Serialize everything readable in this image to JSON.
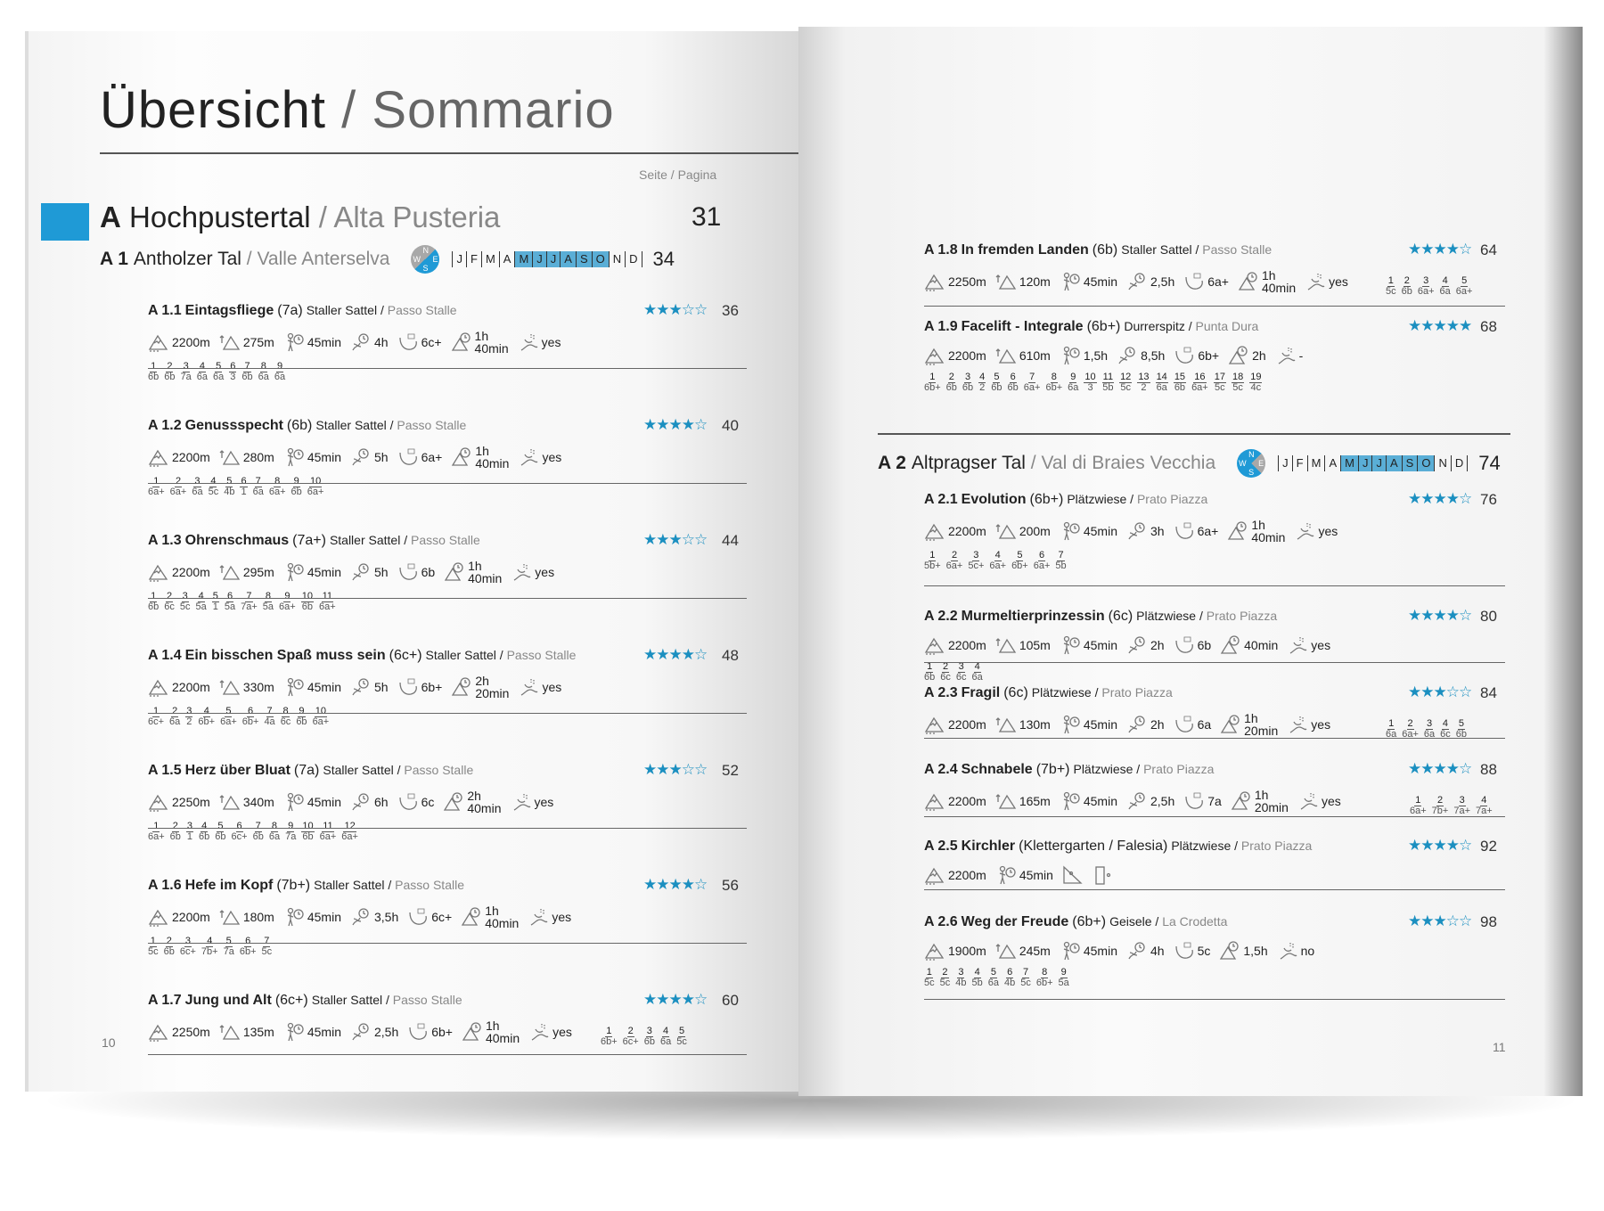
{
  "header": {
    "title_de": "Übersicht",
    "separator": " / ",
    "title_it": "Sommario",
    "page_label": "Seite / Pagina"
  },
  "region": {
    "letter": "A",
    "name_de": "Hochpustertal",
    "separator": " / ",
    "name_it": "Alta Pusteria",
    "page": "31"
  },
  "months": [
    "J",
    "F",
    "M",
    "A",
    "M",
    "J",
    "J",
    "A",
    "S",
    "O",
    "N",
    "D"
  ],
  "valleys": [
    {
      "code": "A 1",
      "name_de": "Antholzer Tal",
      "separator": " / ",
      "name_it": "Valle Anterselva",
      "page": "34",
      "compass": {
        "n": "N",
        "w": "W",
        "e": "E",
        "s": "S",
        "blue_sectors": [
          "E",
          "S"
        ]
      },
      "season_months": [
        5,
        6,
        7,
        8,
        9,
        10
      ]
    },
    {
      "code": "A 2",
      "name_de": "Altpragser Tal",
      "separator": " / ",
      "name_it": "Val di Braies Vecchia",
      "page": "74",
      "compass": {
        "n": "N",
        "w": "W",
        "e": "E",
        "s": "S",
        "blue_sectors": [
          "N",
          "W",
          "S"
        ]
      },
      "season_months": [
        5,
        6,
        7,
        8,
        9,
        10
      ]
    }
  ],
  "routes": [
    {
      "code": "A 1.1",
      "name": "Eintagsfliege",
      "grade": "(7a)",
      "loc_de": "Staller Sattel",
      "loc_it": "Passo Stalle",
      "rating": 3,
      "page": "36",
      "stats": [
        {
          "icon": "altitude-icon",
          "value": "2200m"
        },
        {
          "icon": "height-gain-icon",
          "value": "275m"
        },
        {
          "icon": "approach-icon",
          "value": "45min"
        },
        {
          "icon": "climbing-time-icon",
          "value": "4h"
        },
        {
          "icon": "obligatory-grade-icon",
          "value": "6c+"
        },
        {
          "icon": "descent-icon",
          "value": "1h\n40min"
        },
        {
          "icon": "abseil-icon",
          "value": "yes"
        }
      ],
      "pitches": [
        [
          "1",
          "6b"
        ],
        [
          "2",
          "6b"
        ],
        [
          "3",
          "7a"
        ],
        [
          "4",
          "6a"
        ],
        [
          "5",
          "6a"
        ],
        [
          "6",
          "3"
        ],
        [
          "7",
          "6b"
        ],
        [
          "8",
          "6a"
        ],
        [
          "9",
          "6a"
        ]
      ]
    },
    {
      "code": "A 1.2",
      "name": "Genussspecht",
      "grade": "(6b)",
      "loc_de": "Staller Sattel",
      "loc_it": "Passo Stalle",
      "rating": 4,
      "page": "40",
      "stats": [
        {
          "icon": "altitude-icon",
          "value": "2200m"
        },
        {
          "icon": "height-gain-icon",
          "value": "280m"
        },
        {
          "icon": "approach-icon",
          "value": "45min"
        },
        {
          "icon": "climbing-time-icon",
          "value": "5h"
        },
        {
          "icon": "obligatory-grade-icon",
          "value": "6a+"
        },
        {
          "icon": "descent-icon",
          "value": "1h\n40min"
        },
        {
          "icon": "abseil-icon",
          "value": "yes"
        }
      ],
      "pitches": [
        [
          "1",
          "6a+"
        ],
        [
          "2",
          "6a+"
        ],
        [
          "3",
          "6a"
        ],
        [
          "4",
          "5c"
        ],
        [
          "5",
          "4b"
        ],
        [
          "6",
          "1"
        ],
        [
          "7",
          "6a"
        ],
        [
          "8",
          "6a+"
        ],
        [
          "9",
          "6b"
        ],
        [
          "10",
          "6a+"
        ]
      ]
    },
    {
      "code": "A 1.3",
      "name": "Ohrenschmaus",
      "grade": "(7a+)",
      "loc_de": "Staller Sattel",
      "loc_it": "Passo Stalle",
      "rating": 3,
      "page": "44",
      "stats": [
        {
          "icon": "altitude-icon",
          "value": "2200m"
        },
        {
          "icon": "height-gain-icon",
          "value": "295m"
        },
        {
          "icon": "approach-icon",
          "value": "45min"
        },
        {
          "icon": "climbing-time-icon",
          "value": "5h"
        },
        {
          "icon": "obligatory-grade-icon",
          "value": "6b"
        },
        {
          "icon": "descent-icon",
          "value": "1h\n40min"
        },
        {
          "icon": "abseil-icon",
          "value": "yes"
        }
      ],
      "pitches": [
        [
          "1",
          "6b"
        ],
        [
          "2",
          "6c"
        ],
        [
          "3",
          "5c"
        ],
        [
          "4",
          "5a"
        ],
        [
          "5",
          "1"
        ],
        [
          "6",
          "5a"
        ],
        [
          "7",
          "7a+"
        ],
        [
          "8",
          "5a"
        ],
        [
          "9",
          "6a+"
        ],
        [
          "10",
          "6b"
        ],
        [
          "11",
          "6a+"
        ]
      ]
    },
    {
      "code": "A 1.4",
      "name": "Ein bisschen Spaß muss sein",
      "grade": "(6c+)",
      "loc_de": "Staller Sattel",
      "loc_it": "Passo Stalle",
      "rating": 4,
      "page": "48",
      "stats": [
        {
          "icon": "altitude-icon",
          "value": "2200m"
        },
        {
          "icon": "height-gain-icon",
          "value": "330m"
        },
        {
          "icon": "approach-icon",
          "value": "45min"
        },
        {
          "icon": "climbing-time-icon",
          "value": "5h"
        },
        {
          "icon": "obligatory-grade-icon",
          "value": "6b+"
        },
        {
          "icon": "descent-icon",
          "value": "2h\n20min"
        },
        {
          "icon": "abseil-icon",
          "value": "yes"
        }
      ],
      "pitches": [
        [
          "1",
          "6c+"
        ],
        [
          "2",
          "6a"
        ],
        [
          "3",
          "2"
        ],
        [
          "4",
          "6b+"
        ],
        [
          "5",
          "6a+"
        ],
        [
          "6",
          "6b+"
        ],
        [
          "7",
          "4a"
        ],
        [
          "8",
          "6c"
        ],
        [
          "9",
          "6b"
        ],
        [
          "10",
          "6a+"
        ]
      ]
    },
    {
      "code": "A 1.5",
      "name": "Herz über Bluat",
      "grade": "(7a)",
      "loc_de": "Staller Sattel",
      "loc_it": "Passo Stalle",
      "rating": 3,
      "page": "52",
      "stats": [
        {
          "icon": "altitude-icon",
          "value": "2250m"
        },
        {
          "icon": "height-gain-icon",
          "value": "340m"
        },
        {
          "icon": "approach-icon",
          "value": "45min"
        },
        {
          "icon": "climbing-time-icon",
          "value": "6h"
        },
        {
          "icon": "obligatory-grade-icon",
          "value": "6c"
        },
        {
          "icon": "descent-icon",
          "value": "2h\n40min"
        },
        {
          "icon": "abseil-icon",
          "value": "yes"
        }
      ],
      "pitches": [
        [
          "1",
          "6a+"
        ],
        [
          "2",
          "6b"
        ],
        [
          "3",
          "1"
        ],
        [
          "4",
          "6b"
        ],
        [
          "5",
          "6b"
        ],
        [
          "6",
          "6c+"
        ],
        [
          "7",
          "6b"
        ],
        [
          "8",
          "6a"
        ],
        [
          "9",
          "7a"
        ],
        [
          "10",
          "6b"
        ],
        [
          "11",
          "6a+"
        ],
        [
          "12",
          "6a+"
        ]
      ]
    },
    {
      "code": "A 1.6",
      "name": "Hefe im Kopf",
      "grade": "(7b+)",
      "loc_de": "Staller Sattel",
      "loc_it": "Passo Stalle",
      "rating": 4,
      "page": "56",
      "stats": [
        {
          "icon": "altitude-icon",
          "value": "2200m"
        },
        {
          "icon": "height-gain-icon",
          "value": "180m"
        },
        {
          "icon": "approach-icon",
          "value": "45min"
        },
        {
          "icon": "climbing-time-icon",
          "value": "3,5h"
        },
        {
          "icon": "obligatory-grade-icon",
          "value": "6c+"
        },
        {
          "icon": "descent-icon",
          "value": "1h\n40min"
        },
        {
          "icon": "abseil-icon",
          "value": "yes"
        }
      ],
      "pitches": [
        [
          "1",
          "5c"
        ],
        [
          "2",
          "6b"
        ],
        [
          "3",
          "6c+"
        ],
        [
          "4",
          "7b+"
        ],
        [
          "5",
          "7a"
        ],
        [
          "6",
          "6b+"
        ],
        [
          "7",
          "5c"
        ]
      ]
    },
    {
      "code": "A 1.7",
      "name": "Jung und Alt",
      "grade": "(6c+)",
      "loc_de": "Staller Sattel",
      "loc_it": "Passo Stalle",
      "rating": 4,
      "page": "60",
      "stats": [
        {
          "icon": "altitude-icon",
          "value": "2250m"
        },
        {
          "icon": "height-gain-icon",
          "value": "135m"
        },
        {
          "icon": "approach-icon",
          "value": "45min"
        },
        {
          "icon": "climbing-time-icon",
          "value": "2,5h"
        },
        {
          "icon": "obligatory-grade-icon",
          "value": "6b+"
        },
        {
          "icon": "descent-icon",
          "value": "1h\n40min"
        },
        {
          "icon": "abseil-icon",
          "value": "yes"
        }
      ],
      "pitches": [
        [
          "1",
          "6b+"
        ],
        [
          "2",
          "6c+"
        ],
        [
          "3",
          "6b"
        ],
        [
          "4",
          "6a"
        ],
        [
          "5",
          "5c"
        ]
      ]
    },
    {
      "code": "A 1.8",
      "name": "In fremden Landen",
      "grade": "(6b)",
      "loc_de": "Staller Sattel",
      "loc_it": "Passo Stalle",
      "rating": 4,
      "page": "64",
      "stats": [
        {
          "icon": "altitude-icon",
          "value": "2250m"
        },
        {
          "icon": "height-gain-icon",
          "value": "120m"
        },
        {
          "icon": "approach-icon",
          "value": "45min"
        },
        {
          "icon": "climbing-time-icon",
          "value": "2,5h"
        },
        {
          "icon": "obligatory-grade-icon",
          "value": "6a+"
        },
        {
          "icon": "descent-icon",
          "value": "1h\n40min"
        },
        {
          "icon": "abseil-icon",
          "value": "yes"
        }
      ],
      "pitches": [
        [
          "1",
          "5c"
        ],
        [
          "2",
          "6b"
        ],
        [
          "3",
          "6a+"
        ],
        [
          "4",
          "6a"
        ],
        [
          "5",
          "6a+"
        ]
      ]
    },
    {
      "code": "A 1.9",
      "name": "Facelift - Integrale",
      "grade": "(6b+)",
      "loc_de": "Durrerspitz",
      "loc_it": "Punta Dura",
      "rating": 5,
      "page": "68",
      "stats": [
        {
          "icon": "altitude-icon",
          "value": "2200m"
        },
        {
          "icon": "height-gain-icon",
          "value": "610m"
        },
        {
          "icon": "approach-icon",
          "value": "1,5h"
        },
        {
          "icon": "climbing-time-icon",
          "value": "8,5h"
        },
        {
          "icon": "obligatory-grade-icon",
          "value": "6b+"
        },
        {
          "icon": "descent-icon",
          "value": "2h"
        },
        {
          "icon": "abseil-icon",
          "value": "-"
        }
      ],
      "pitches": [
        [
          "1",
          "6b+"
        ],
        [
          "2",
          "6b"
        ],
        [
          "3",
          "6b"
        ],
        [
          "4",
          "2"
        ],
        [
          "5",
          "6b"
        ],
        [
          "6",
          "6b"
        ],
        [
          "7",
          "6a+"
        ],
        [
          "8",
          "6b+"
        ],
        [
          "9",
          "6a"
        ],
        [
          "10",
          "3"
        ],
        [
          "11",
          "5b"
        ],
        [
          "12",
          "5c"
        ],
        [
          "13",
          "2"
        ],
        [
          "14",
          "6a"
        ],
        [
          "15",
          "6b"
        ],
        [
          "16",
          "6a+"
        ],
        [
          "17",
          "5c"
        ],
        [
          "18",
          "5c"
        ],
        [
          "19",
          "4c"
        ]
      ]
    },
    {
      "code": "A 2.1",
      "name": "Evolution",
      "grade": "(6b+)",
      "loc_de": "Plätzwiese",
      "loc_it": "Prato Piazza",
      "rating": 4,
      "page": "76",
      "stats": [
        {
          "icon": "altitude-icon",
          "value": "2200m"
        },
        {
          "icon": "height-gain-icon",
          "value": "200m"
        },
        {
          "icon": "approach-icon",
          "value": "45min"
        },
        {
          "icon": "climbing-time-icon",
          "value": "3h"
        },
        {
          "icon": "obligatory-grade-icon",
          "value": "6a+"
        },
        {
          "icon": "descent-icon",
          "value": "1h\n40min"
        },
        {
          "icon": "abseil-icon",
          "value": "yes"
        }
      ],
      "pitches": [
        [
          "1",
          "5b+"
        ],
        [
          "2",
          "6a+"
        ],
        [
          "3",
          "5c+"
        ],
        [
          "4",
          "6a+"
        ],
        [
          "5",
          "6b+"
        ],
        [
          "6",
          "6a+"
        ],
        [
          "7",
          "5b"
        ]
      ]
    },
    {
      "code": "A 2.2",
      "name": "Murmeltierprinzessin",
      "grade": "(6c)",
      "loc_de": "Plätzwiese",
      "loc_it": "Prato Piazza",
      "rating": 4,
      "page": "80",
      "stats": [
        {
          "icon": "altitude-icon",
          "value": "2200m"
        },
        {
          "icon": "height-gain-icon",
          "value": "105m"
        },
        {
          "icon": "approach-icon",
          "value": "45min"
        },
        {
          "icon": "climbing-time-icon",
          "value": "2h"
        },
        {
          "icon": "obligatory-grade-icon",
          "value": "6b"
        },
        {
          "icon": "descent-icon",
          "value": "40min"
        },
        {
          "icon": "abseil-icon",
          "value": "yes"
        }
      ],
      "pitches": [
        [
          "1",
          "6b"
        ],
        [
          "2",
          "6c"
        ],
        [
          "3",
          "6c"
        ],
        [
          "4",
          "6a"
        ]
      ]
    },
    {
      "code": "A 2.3",
      "name": "Fragil",
      "grade": "(6c)",
      "loc_de": "Plätzwiese",
      "loc_it": "Prato Piazza",
      "rating": 3,
      "page": "84",
      "stats": [
        {
          "icon": "altitude-icon",
          "value": "2200m"
        },
        {
          "icon": "height-gain-icon",
          "value": "130m"
        },
        {
          "icon": "approach-icon",
          "value": "45min"
        },
        {
          "icon": "climbing-time-icon",
          "value": "2h"
        },
        {
          "icon": "obligatory-grade-icon",
          "value": "6a"
        },
        {
          "icon": "descent-icon",
          "value": "1h\n20min"
        },
        {
          "icon": "abseil-icon",
          "value": "yes"
        }
      ],
      "pitches": [
        [
          "1",
          "6a"
        ],
        [
          "2",
          "6a+"
        ],
        [
          "3",
          "6a"
        ],
        [
          "4",
          "6c"
        ],
        [
          "5",
          "6b"
        ]
      ]
    },
    {
      "code": "A 2.4",
      "name": "Schnabele",
      "grade": "(7b+)",
      "loc_de": "Plätzwiese",
      "loc_it": "Prato Piazza",
      "rating": 4,
      "page": "88",
      "stats": [
        {
          "icon": "altitude-icon",
          "value": "2200m"
        },
        {
          "icon": "height-gain-icon",
          "value": "165m"
        },
        {
          "icon": "approach-icon",
          "value": "45min"
        },
        {
          "icon": "climbing-time-icon",
          "value": "2,5h"
        },
        {
          "icon": "obligatory-grade-icon",
          "value": "7a"
        },
        {
          "icon": "descent-icon",
          "value": "1h\n20min"
        },
        {
          "icon": "abseil-icon",
          "value": "yes"
        }
      ],
      "pitches": [
        [
          "1",
          "6a+"
        ],
        [
          "2",
          "7b+"
        ],
        [
          "3",
          "7a+"
        ],
        [
          "4",
          "7a+"
        ]
      ]
    },
    {
      "code": "A 2.5",
      "name": "Kirchler",
      "grade": "(Klettergarten / Falesia)",
      "loc_de": "Plätzwiese",
      "loc_it": "Prato Piazza",
      "rating": 4,
      "page": "92",
      "stats": [
        {
          "icon": "altitude-icon",
          "value": "2200m"
        },
        {
          "icon": "approach-icon",
          "value": "45min"
        },
        {
          "icon": "slab-icon",
          "value": ""
        },
        {
          "icon": "vertical-wall-icon",
          "value": ""
        }
      ],
      "pitches": []
    },
    {
      "code": "A 2.6",
      "name": "Weg der Freude",
      "grade": "(6b+)",
      "loc_de": "Geisele",
      "loc_it": "La Crodetta",
      "rating": 3,
      "page": "98",
      "stats": [
        {
          "icon": "altitude-icon",
          "value": "1900m"
        },
        {
          "icon": "height-gain-icon",
          "value": "245m"
        },
        {
          "icon": "approach-icon",
          "value": "45min"
        },
        {
          "icon": "climbing-time-icon",
          "value": "4h"
        },
        {
          "icon": "obligatory-grade-icon",
          "value": "5c"
        },
        {
          "icon": "descent-icon",
          "value": "1,5h"
        },
        {
          "icon": "abseil-icon",
          "value": "no"
        }
      ],
      "pitches": [
        [
          "1",
          "5c"
        ],
        [
          "2",
          "5c"
        ],
        [
          "3",
          "4b"
        ],
        [
          "4",
          "5b"
        ],
        [
          "5",
          "6a"
        ],
        [
          "6",
          "4b"
        ],
        [
          "7",
          "5c"
        ],
        [
          "8",
          "6b+"
        ],
        [
          "9",
          "5a"
        ]
      ]
    }
  ],
  "page_numbers": {
    "left": "10",
    "right": "11"
  },
  "colors": {
    "accent": "#1f9ad6",
    "stars": "#1b8fc0",
    "season": "#5aaed6"
  }
}
